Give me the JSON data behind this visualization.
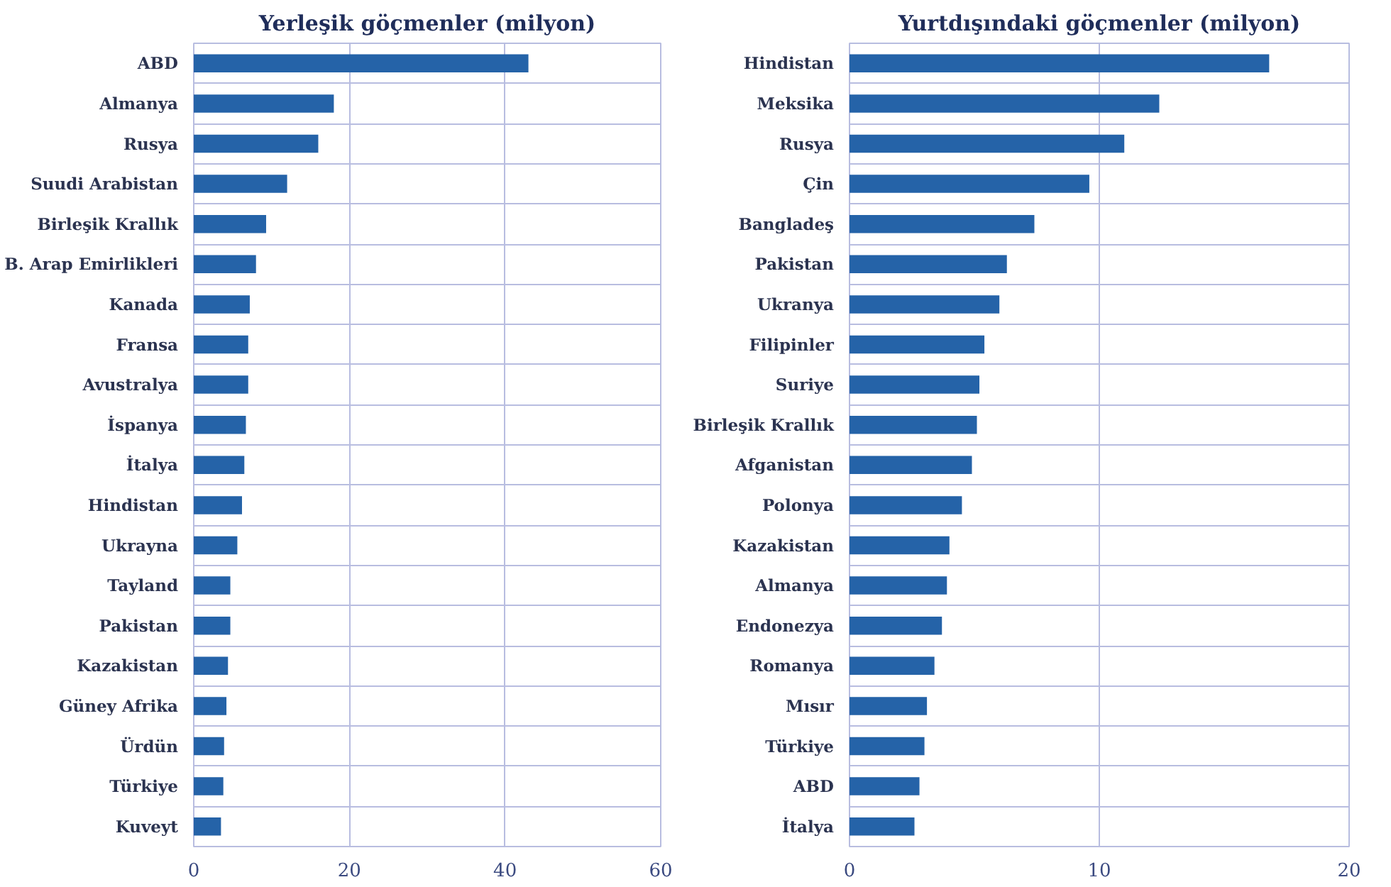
{
  "chart_data": [
    {
      "type": "bar",
      "orientation": "horizontal",
      "title": "Yerleşik göçmenler (milyon)",
      "color": "#2563a8",
      "categories": [
        "ABD",
        "Almanya",
        "Rusya",
        "Suudi Arabistan",
        "Birleşik Krallık",
        "B. Arap Emirlikleri",
        "Kanada",
        "Fransa",
        "Avustralya",
        "İspanya",
        "İtalya",
        "Hindistan",
        "Ukrayna",
        "Tayland",
        "Pakistan",
        "Kazakistan",
        "Güney Afrika",
        "Ürdün",
        "Türkiye",
        "Kuveyt"
      ],
      "values": [
        43,
        18,
        16,
        12,
        9.3,
        8,
        7.2,
        7,
        7,
        6.7,
        6.5,
        6.2,
        5.6,
        4.7,
        4.7,
        4.4,
        4.2,
        3.9,
        3.8,
        3.5
      ],
      "xlim": [
        0,
        60
      ],
      "xticks": [
        0,
        20,
        40,
        60
      ],
      "grid": true
    },
    {
      "type": "bar",
      "orientation": "horizontal",
      "title": "Yurtdışındaki göçmenler (milyon)",
      "color": "#2563a8",
      "categories": [
        "Hindistan",
        "Meksika",
        "Rusya",
        "Çin",
        "Bangladeş",
        "Pakistan",
        "Ukranya",
        "Filipinler",
        "Suriye",
        "Birleşik Krallık",
        "Afganistan",
        "Polonya",
        "Kazakistan",
        "Almanya",
        "Endonezya",
        "Romanya",
        "Mısır",
        "Türkiye",
        "ABD",
        "İtalya"
      ],
      "values": [
        16.8,
        12.4,
        11,
        9.6,
        7.4,
        6.3,
        6,
        5.4,
        5.2,
        5.1,
        4.9,
        4.5,
        4,
        3.9,
        3.7,
        3.4,
        3.1,
        3,
        2.8,
        2.6
      ],
      "xlim": [
        0,
        20
      ],
      "xticks": [
        0,
        10,
        20
      ],
      "grid": true
    }
  ]
}
